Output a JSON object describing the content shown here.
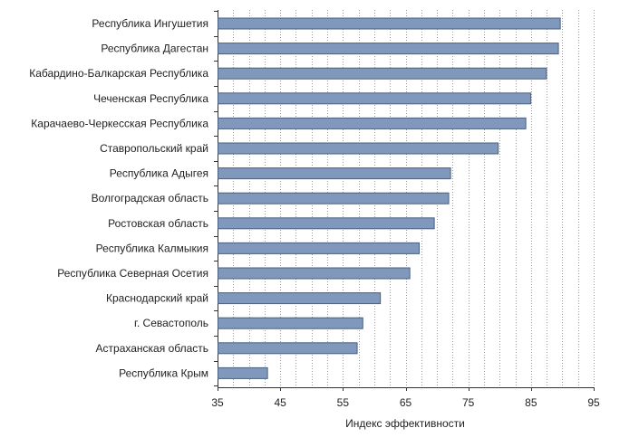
{
  "chart_data": {
    "type": "bar",
    "orientation": "horizontal",
    "title": "",
    "xlabel": "Индекс эффективности",
    "ylabel": "",
    "xlim": [
      35,
      95
    ],
    "xticks": [
      35,
      45,
      55,
      65,
      75,
      85,
      95
    ],
    "grid": "vertical dotted, every 2.5 units",
    "bar_color": "#8098bb",
    "bar_edge_color": "#4a5f80",
    "categories": [
      "Республика Ингушетия",
      "Республика Дагестан",
      "Кабардино-Балкарская Республика",
      "Чеченская Республика",
      "Карачаево-Черкесская Республика",
      "Ставропольский край",
      "Республика Адыгея",
      "Волгоградская область",
      "Ростовская область",
      "Республика Калмыкия",
      "Республика Северная Осетия",
      "Краснодарский край",
      "г. Севастополь",
      "Астраханская область",
      "Республика Крым"
    ],
    "values": [
      89.6,
      89.3,
      87.4,
      84.9,
      84.1,
      79.7,
      72.1,
      71.8,
      69.5,
      67.1,
      65.6,
      60.9,
      58.1,
      57.2,
      42.9
    ]
  }
}
